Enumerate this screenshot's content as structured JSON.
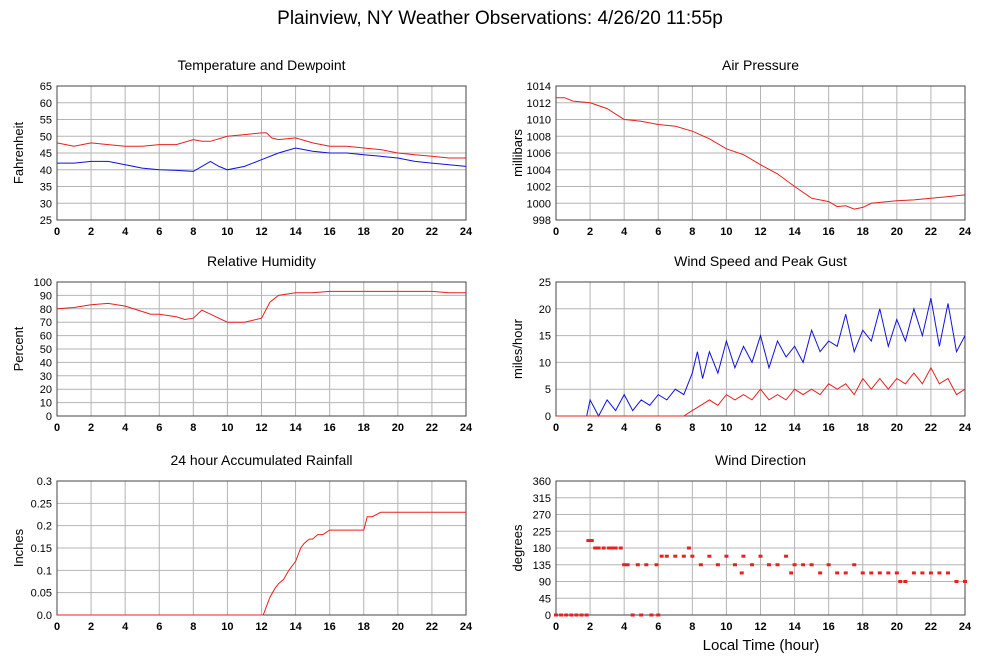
{
  "title": "Plainview, NY Weather Observations: 4/26/20 11:55p",
  "xlabel": "Local Time (hour)",
  "colors": {
    "red": "#e82020",
    "blue": "#1010e0",
    "grid": "#b4b4b4"
  },
  "chart_data": [
    {
      "type": "line",
      "title": "Temperature and Dewpoint",
      "ylabel": "Fahrenheit",
      "xlim": [
        0,
        24
      ],
      "ylim": [
        25,
        65
      ],
      "xticks": [
        "0",
        "2",
        "4",
        "6",
        "8",
        "10",
        "12",
        "14",
        "16",
        "18",
        "20",
        "22",
        "24"
      ],
      "yticks": [
        "25",
        "30",
        "35",
        "40",
        "45",
        "50",
        "55",
        "60",
        "65"
      ],
      "series": [
        {
          "color": "red",
          "x": [
            0,
            1,
            2,
            3,
            4,
            5,
            6,
            7,
            8,
            8.5,
            9,
            10,
            11,
            12,
            12.3,
            12.6,
            13,
            14,
            15,
            16,
            17,
            18,
            19,
            20,
            21,
            22,
            23,
            24
          ],
          "values": [
            48,
            47,
            48,
            47.5,
            47,
            47,
            47.5,
            47.5,
            49,
            48.5,
            48.5,
            50,
            50.5,
            51,
            51,
            49.5,
            49,
            49.5,
            48,
            47,
            47,
            46.5,
            46,
            45,
            44.5,
            44,
            43.5,
            43.5
          ]
        },
        {
          "color": "blue",
          "x": [
            0,
            1,
            2,
            3,
            4,
            5,
            6,
            7,
            8,
            8.5,
            9,
            9.5,
            10,
            11,
            12,
            13,
            14,
            14.5,
            15,
            16,
            17,
            18,
            19,
            20,
            21,
            22,
            23,
            24
          ],
          "values": [
            42,
            42,
            42.5,
            42.5,
            41.5,
            40.5,
            40,
            39.8,
            39.5,
            41,
            42.5,
            41,
            40,
            41,
            43,
            45,
            46.5,
            46,
            45.5,
            45,
            45,
            44.5,
            44,
            43.5,
            42.5,
            42,
            41.5,
            41
          ]
        }
      ]
    },
    {
      "type": "line",
      "title": "Air Pressure",
      "ylabel": "millibars",
      "xlim": [
        0,
        24
      ],
      "ylim": [
        998,
        1014
      ],
      "xticks": [
        "0",
        "2",
        "4",
        "6",
        "8",
        "10",
        "12",
        "14",
        "16",
        "18",
        "20",
        "22",
        "24"
      ],
      "yticks": [
        "998",
        "1000",
        "1002",
        "1004",
        "1006",
        "1008",
        "1010",
        "1012",
        "1014"
      ],
      "series": [
        {
          "color": "red",
          "x": [
            0,
            0.5,
            1,
            2,
            3,
            4,
            5,
            6,
            7,
            8,
            9,
            10,
            11,
            12,
            13,
            14,
            15,
            16,
            16.5,
            17,
            17.5,
            18,
            18.5,
            19,
            20,
            21,
            22,
            23,
            24
          ],
          "values": [
            1012.6,
            1012.6,
            1012.2,
            1012,
            1011.3,
            1010,
            1009.8,
            1009.4,
            1009.2,
            1008.6,
            1007.7,
            1006.5,
            1005.8,
            1004.6,
            1003.5,
            1002,
            1000.6,
            1000.2,
            999.6,
            999.7,
            999.3,
            999.5,
            1000,
            1000.1,
            1000.3,
            1000.4,
            1000.6,
            1000.8,
            1001
          ]
        }
      ]
    },
    {
      "type": "line",
      "title": "Relative Humidity",
      "ylabel": "Percent",
      "xlim": [
        0,
        24
      ],
      "ylim": [
        0,
        100
      ],
      "xticks": [
        "0",
        "2",
        "4",
        "6",
        "8",
        "10",
        "12",
        "14",
        "16",
        "18",
        "20",
        "22",
        "24"
      ],
      "yticks": [
        "0",
        "10",
        "20",
        "30",
        "40",
        "50",
        "60",
        "70",
        "80",
        "90",
        "100"
      ],
      "series": [
        {
          "color": "red",
          "x": [
            0,
            1,
            2,
            3,
            4,
            5,
            5.5,
            6,
            7,
            7.5,
            8,
            8.5,
            9,
            10,
            11,
            12,
            12.5,
            13,
            14,
            15,
            16,
            17,
            18,
            19,
            20,
            21,
            22,
            23,
            24
          ],
          "values": [
            80,
            81,
            83,
            84,
            82,
            78,
            76,
            76,
            74,
            72,
            73,
            79,
            76,
            70,
            70,
            73,
            85,
            90,
            92,
            92,
            93,
            93,
            93,
            93,
            93,
            93,
            93,
            92,
            92
          ]
        }
      ]
    },
    {
      "type": "line",
      "title": "Wind Speed and Peak Gust",
      "ylabel": "miles/hour",
      "xlim": [
        0,
        24
      ],
      "ylim": [
        0,
        25
      ],
      "xticks": [
        "0",
        "2",
        "4",
        "6",
        "8",
        "10",
        "12",
        "14",
        "16",
        "18",
        "20",
        "22",
        "24"
      ],
      "yticks": [
        "0",
        "5",
        "10",
        "15",
        "20",
        "25"
      ],
      "series": [
        {
          "color": "blue",
          "x": [
            0,
            1.8,
            2,
            2.5,
            3,
            3.5,
            4,
            4.5,
            5,
            5.5,
            6,
            6.5,
            7,
            7.5,
            8,
            8.3,
            8.6,
            9,
            9.5,
            10,
            10.5,
            11,
            11.5,
            12,
            12.5,
            13,
            13.5,
            14,
            14.5,
            15,
            15.5,
            16,
            16.5,
            17,
            17.5,
            18,
            18.5,
            19,
            19.5,
            20,
            20.5,
            21,
            21.5,
            22,
            22.5,
            23,
            23.5,
            24
          ],
          "values": [
            0,
            0,
            3,
            0,
            3,
            1,
            4,
            1,
            3,
            2,
            4,
            3,
            5,
            4,
            8,
            12,
            7,
            12,
            8,
            14,
            9,
            13,
            10,
            15,
            9,
            14,
            11,
            13,
            10,
            16,
            12,
            14,
            13,
            19,
            12,
            16,
            14,
            20,
            13,
            18,
            14,
            20,
            15,
            22,
            13,
            21,
            12,
            15
          ]
        },
        {
          "color": "red",
          "x": [
            0,
            7.5,
            8,
            8.5,
            9,
            9.5,
            10,
            10.5,
            11,
            11.5,
            12,
            12.5,
            13,
            13.5,
            14,
            14.5,
            15,
            15.5,
            16,
            16.5,
            17,
            17.5,
            18,
            18.5,
            19,
            19.5,
            20,
            20.5,
            21,
            21.5,
            22,
            22.5,
            23,
            23.5,
            24
          ],
          "values": [
            0,
            0,
            1,
            2,
            3,
            2,
            4,
            3,
            4,
            3,
            5,
            3,
            4,
            3,
            5,
            4,
            5,
            4,
            6,
            5,
            6,
            4,
            7,
            5,
            7,
            5,
            7,
            6,
            8,
            6,
            9,
            6,
            7,
            4,
            5
          ]
        }
      ]
    },
    {
      "type": "line",
      "title": "24 hour Accumulated Rainfall",
      "ylabel": "Inches",
      "xlim": [
        0,
        24
      ],
      "ylim": [
        0,
        0.3
      ],
      "xticks": [
        "0",
        "2",
        "4",
        "6",
        "8",
        "10",
        "12",
        "14",
        "16",
        "18",
        "20",
        "22",
        "24"
      ],
      "yticks": [
        "0.0",
        "0.05",
        "0.1",
        "0.15",
        "0.2",
        "0.25",
        "0.3"
      ],
      "series": [
        {
          "color": "red",
          "x": [
            0,
            12.1,
            12.3,
            12.5,
            12.8,
            13,
            13.3,
            13.6,
            14,
            14.3,
            14.5,
            14.8,
            15,
            15.3,
            15.6,
            16,
            16.5,
            17,
            17.5,
            18,
            18.2,
            18.5,
            19,
            20,
            21,
            22,
            23,
            24
          ],
          "values": [
            0,
            0,
            0.02,
            0.04,
            0.06,
            0.07,
            0.08,
            0.1,
            0.12,
            0.15,
            0.16,
            0.17,
            0.17,
            0.18,
            0.18,
            0.19,
            0.19,
            0.19,
            0.19,
            0.19,
            0.22,
            0.22,
            0.23,
            0.23,
            0.23,
            0.23,
            0.23,
            0.23
          ]
        }
      ]
    },
    {
      "type": "scatter",
      "title": "Wind Direction",
      "ylabel": "degrees",
      "xlim": [
        0,
        24
      ],
      "ylim": [
        0,
        360
      ],
      "xticks": [
        "0",
        "2",
        "4",
        "6",
        "8",
        "10",
        "12",
        "14",
        "16",
        "18",
        "20",
        "22",
        "24"
      ],
      "yticks": [
        "0",
        "45",
        "90",
        "135",
        "180",
        "225",
        "270",
        "315",
        "360"
      ],
      "series": [
        {
          "color": "red",
          "x": [
            0,
            0.3,
            0.6,
            0.9,
            1.2,
            1.5,
            1.8,
            1.9,
            2.1,
            2.3,
            2.5,
            2.8,
            3.1,
            3.3,
            3.5,
            3.8,
            4,
            4.2,
            4.5,
            4.8,
            5,
            5.3,
            5.6,
            5.9,
            6,
            6.2,
            6.5,
            7,
            7.5,
            7.8,
            8,
            8.5,
            9,
            9.5,
            10,
            10.5,
            10.9,
            11,
            11.5,
            12,
            12.5,
            13,
            13.5,
            13.8,
            14,
            14.5,
            15,
            15.5,
            16,
            16.5,
            17,
            17.5,
            18,
            18.5,
            19,
            19.5,
            20,
            20.2,
            20.5,
            21,
            21.5,
            22,
            22.5,
            23,
            23.5,
            24
          ],
          "values": [
            0,
            0,
            0,
            0,
            0,
            0,
            0,
            200,
            200,
            180,
            180,
            180,
            180,
            180,
            180,
            180,
            135,
            135,
            0,
            135,
            0,
            135,
            0,
            135,
            0,
            158,
            158,
            158,
            158,
            180,
            158,
            135,
            158,
            135,
            158,
            135,
            113,
            158,
            135,
            158,
            135,
            135,
            158,
            113,
            135,
            135,
            135,
            113,
            135,
            113,
            113,
            135,
            113,
            113,
            113,
            113,
            113,
            90,
            90,
            113,
            113,
            113,
            113,
            113,
            90,
            90
          ]
        }
      ]
    }
  ]
}
